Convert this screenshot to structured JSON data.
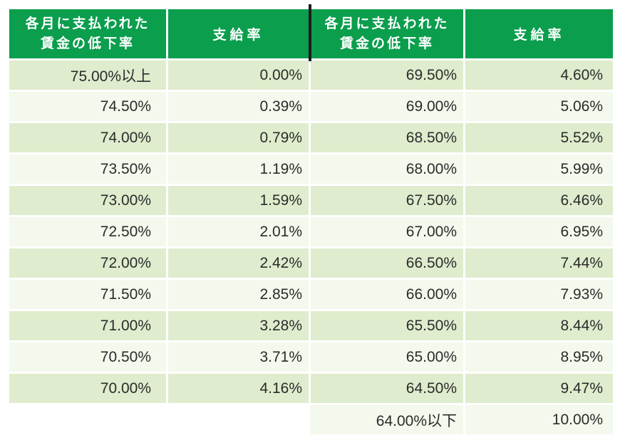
{
  "colors": {
    "header_green": "#0a9e4d",
    "row_green": "#dfeccd",
    "row_pale": "#f3f9ec",
    "divider_dark": "#1c1c1c",
    "header_text": "#ffffff",
    "body_text": "#2b2b2b",
    "page_background": "#ffffff"
  },
  "table": {
    "headers": [
      {
        "line1": "各月に支払われた",
        "line2": "賃金の低下率"
      },
      {
        "label": "支給率"
      },
      {
        "line1": "各月に支払われた",
        "line2": "賃金の低下率"
      },
      {
        "label": "支給率"
      }
    ],
    "rows": [
      {
        "cells": [
          "75.00%以上",
          "0.00%",
          "69.50%",
          "4.60%"
        ]
      },
      {
        "cells": [
          "74.50%",
          "0.39%",
          "69.00%",
          "5.06%"
        ]
      },
      {
        "cells": [
          "74.00%",
          "0.79%",
          "68.50%",
          "5.52%"
        ]
      },
      {
        "cells": [
          "73.50%",
          "1.19%",
          "68.00%",
          "5.99%"
        ]
      },
      {
        "cells": [
          "73.00%",
          "1.59%",
          "67.50%",
          "6.46%"
        ]
      },
      {
        "cells": [
          "72.50%",
          "2.01%",
          "67.00%",
          "6.95%"
        ]
      },
      {
        "cells": [
          "72.00%",
          "2.42%",
          "66.50%",
          "7.44%"
        ]
      },
      {
        "cells": [
          "71.50%",
          "2.85%",
          "66.00%",
          "7.93%"
        ]
      },
      {
        "cells": [
          "71.00%",
          "3.28%",
          "65.50%",
          "8.44%"
        ]
      },
      {
        "cells": [
          "70.50%",
          "3.71%",
          "65.00%",
          "8.95%"
        ]
      },
      {
        "cells": [
          "70.00%",
          "4.16%",
          "64.50%",
          "9.47%"
        ]
      },
      {
        "cells": [
          "",
          "",
          "64.00%以下",
          "10.00%"
        ]
      }
    ]
  },
  "chart_data": {
    "type": "table",
    "title": "",
    "columns": [
      "各月に支払われた賃金の低下率",
      "支給率",
      "各月に支払われた賃金の低下率",
      "支給率"
    ],
    "rows": [
      [
        "75.00%以上",
        "0.00%",
        "69.50%",
        "4.60%"
      ],
      [
        "74.50%",
        "0.39%",
        "69.00%",
        "5.06%"
      ],
      [
        "74.00%",
        "0.79%",
        "68.50%",
        "5.52%"
      ],
      [
        "73.50%",
        "1.19%",
        "68.00%",
        "5.99%"
      ],
      [
        "73.00%",
        "1.59%",
        "67.50%",
        "6.46%"
      ],
      [
        "72.50%",
        "2.01%",
        "67.00%",
        "6.95%"
      ],
      [
        "72.00%",
        "2.42%",
        "66.50%",
        "7.44%"
      ],
      [
        "71.50%",
        "2.85%",
        "66.00%",
        "7.93%"
      ],
      [
        "71.00%",
        "3.28%",
        "65.50%",
        "8.44%"
      ],
      [
        "70.50%",
        "3.71%",
        "65.00%",
        "8.95%"
      ],
      [
        "70.00%",
        "4.16%",
        "64.50%",
        "9.47%"
      ],
      [
        "",
        "",
        "64.00%以下",
        "10.00%"
      ]
    ],
    "pairs": [
      {
        "wage_decline_rate": "75.00%以上",
        "payment_rate": "0.00%"
      },
      {
        "wage_decline_rate": "74.50%",
        "payment_rate": "0.39%"
      },
      {
        "wage_decline_rate": "74.00%",
        "payment_rate": "0.79%"
      },
      {
        "wage_decline_rate": "73.50%",
        "payment_rate": "1.19%"
      },
      {
        "wage_decline_rate": "73.00%",
        "payment_rate": "1.59%"
      },
      {
        "wage_decline_rate": "72.50%",
        "payment_rate": "2.01%"
      },
      {
        "wage_decline_rate": "72.00%",
        "payment_rate": "2.42%"
      },
      {
        "wage_decline_rate": "71.50%",
        "payment_rate": "2.85%"
      },
      {
        "wage_decline_rate": "71.00%",
        "payment_rate": "3.28%"
      },
      {
        "wage_decline_rate": "70.50%",
        "payment_rate": "3.71%"
      },
      {
        "wage_decline_rate": "70.00%",
        "payment_rate": "4.16%"
      },
      {
        "wage_decline_rate": "69.50%",
        "payment_rate": "4.60%"
      },
      {
        "wage_decline_rate": "69.00%",
        "payment_rate": "5.06%"
      },
      {
        "wage_decline_rate": "68.50%",
        "payment_rate": "5.52%"
      },
      {
        "wage_decline_rate": "68.00%",
        "payment_rate": "5.99%"
      },
      {
        "wage_decline_rate": "67.50%",
        "payment_rate": "6.46%"
      },
      {
        "wage_decline_rate": "67.00%",
        "payment_rate": "6.95%"
      },
      {
        "wage_decline_rate": "66.50%",
        "payment_rate": "7.44%"
      },
      {
        "wage_decline_rate": "66.00%",
        "payment_rate": "7.93%"
      },
      {
        "wage_decline_rate": "65.50%",
        "payment_rate": "8.44%"
      },
      {
        "wage_decline_rate": "65.00%",
        "payment_rate": "8.95%"
      },
      {
        "wage_decline_rate": "64.50%",
        "payment_rate": "9.47%"
      },
      {
        "wage_decline_rate": "64.00%以下",
        "payment_rate": "10.00%"
      }
    ],
    "layout": {
      "split_into_two_side_by_side_tables": true,
      "header_background": "#0a9e4d",
      "alternating_rows": true
    }
  }
}
